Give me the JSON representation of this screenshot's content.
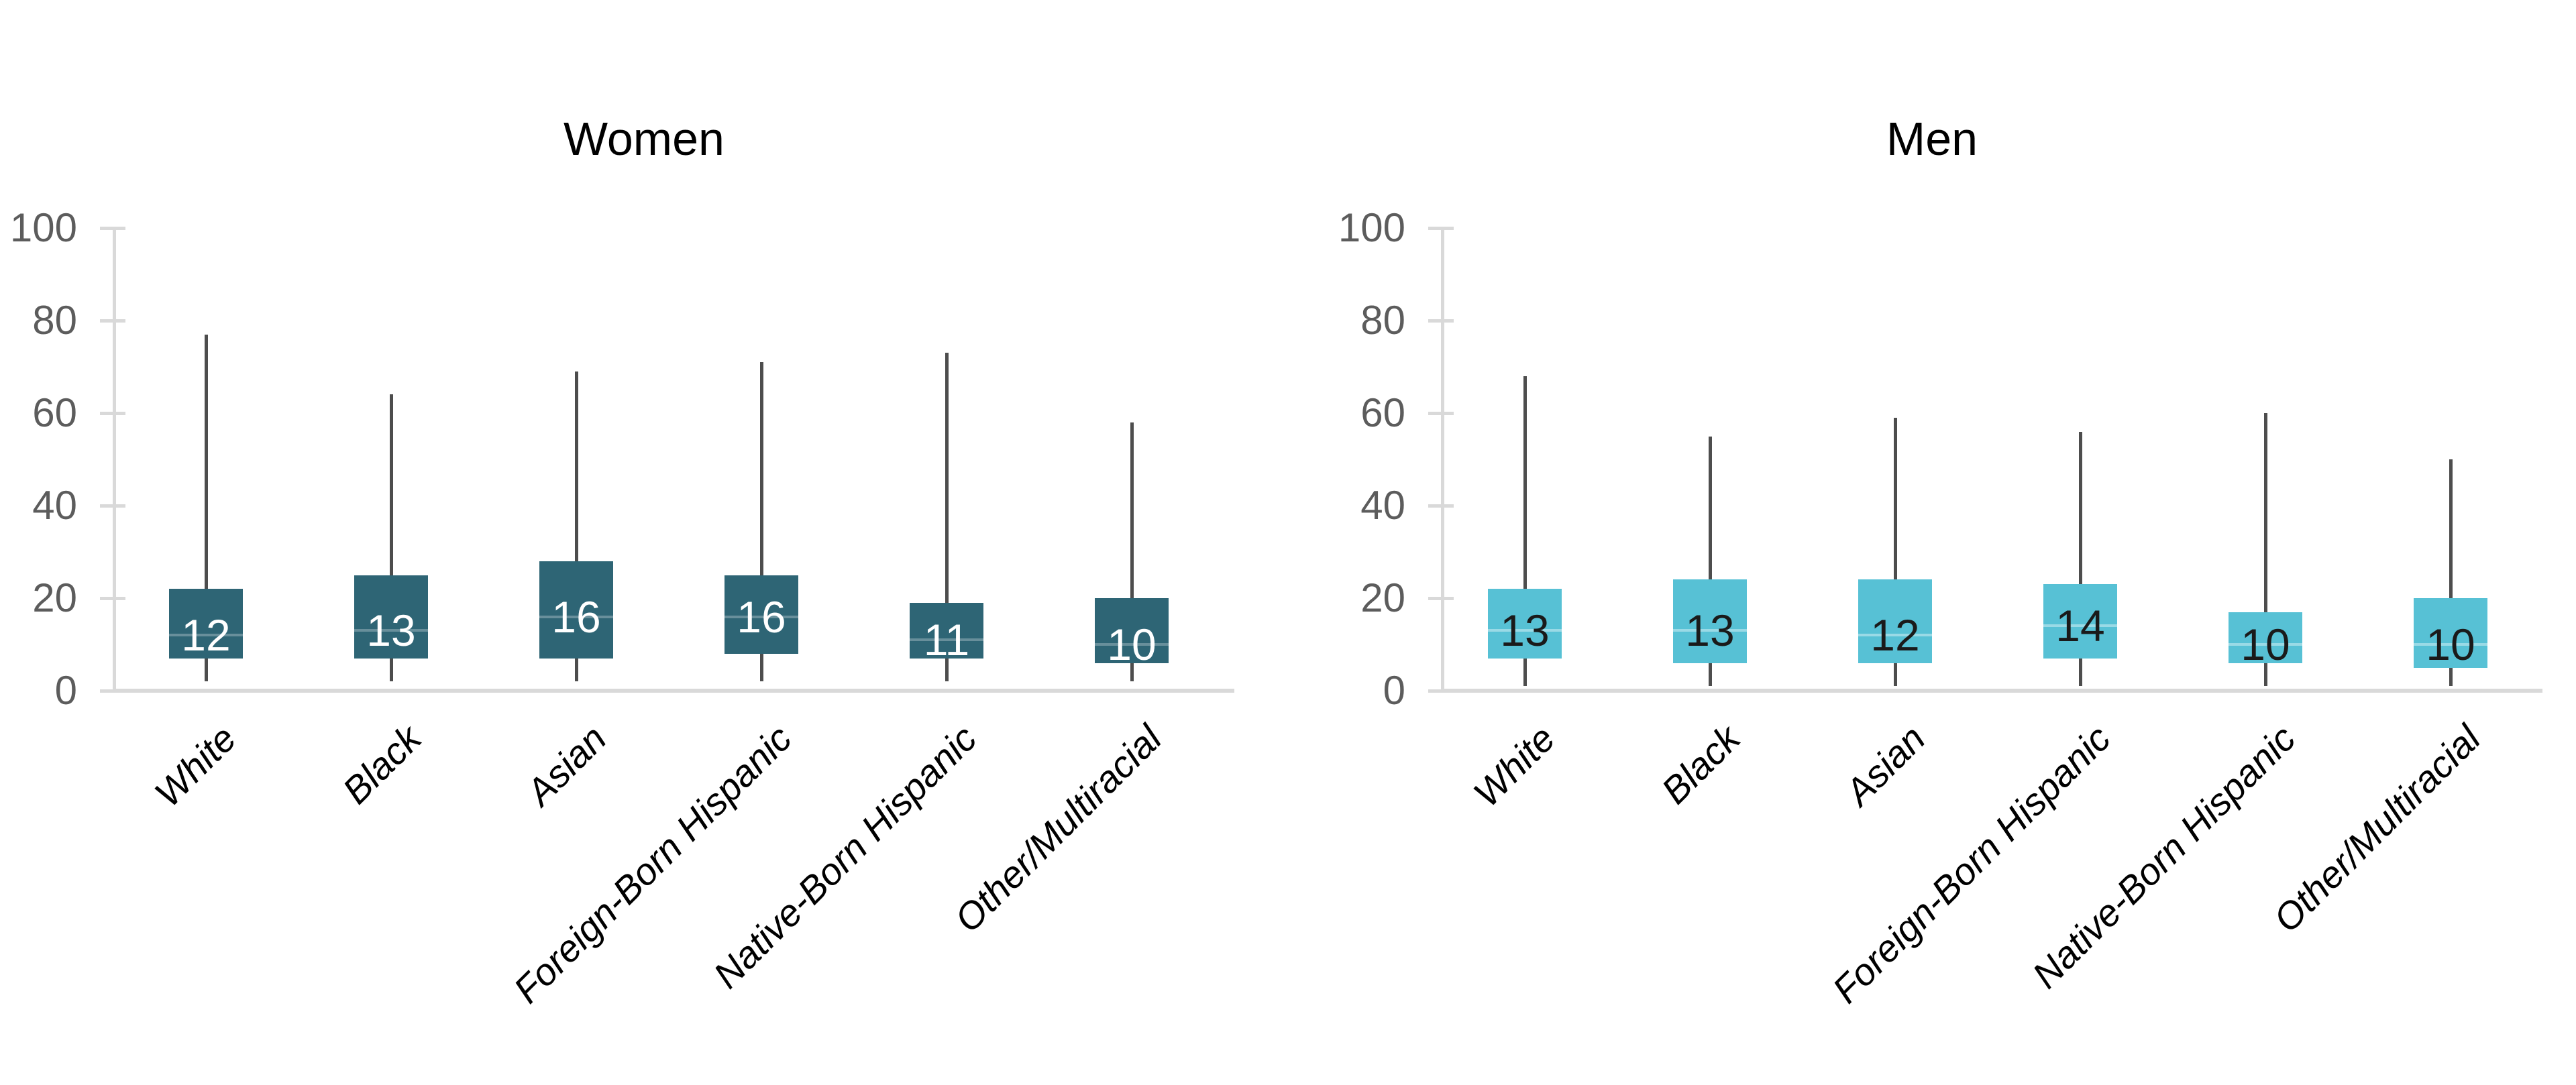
{
  "figure": {
    "background": "#ffffff"
  },
  "chart_data": [
    {
      "type": "box",
      "title": "Women",
      "categories": [
        "White",
        "Black",
        "Asian",
        "Foreign-Born Hispanic",
        "Native-Born Hispanic",
        "Other/Multiracial"
      ],
      "ylim": [
        0,
        100
      ],
      "yticks": [
        0,
        20,
        40,
        60,
        80,
        100
      ],
      "grid": false,
      "series": [
        {
          "category": "White",
          "median": 12,
          "q1": 7,
          "q3": 22,
          "whisker_low": 2,
          "whisker_high": 77
        },
        {
          "category": "Black",
          "median": 13,
          "q1": 7,
          "q3": 25,
          "whisker_low": 2,
          "whisker_high": 64
        },
        {
          "category": "Asian",
          "median": 16,
          "q1": 7,
          "q3": 28,
          "whisker_low": 2,
          "whisker_high": 69
        },
        {
          "category": "Foreign-Born Hispanic",
          "median": 16,
          "q1": 8,
          "q3": 25,
          "whisker_low": 2,
          "whisker_high": 71
        },
        {
          "category": "Native-Born Hispanic",
          "median": 11,
          "q1": 7,
          "q3": 19,
          "whisker_low": 2,
          "whisker_high": 73
        },
        {
          "category": "Other/Multiracial",
          "median": 10,
          "q1": 6,
          "q3": 20,
          "whisker_low": 2,
          "whisker_high": 58
        }
      ],
      "style": {
        "box_color": "#2e6575",
        "median_label_color": "#ffffff",
        "median_line_color": "rgba(255,255,255,0.28)"
      }
    },
    {
      "type": "box",
      "title": "Men",
      "categories": [
        "White",
        "Black",
        "Asian",
        "Foreign-Born Hispanic",
        "Native-Born Hispanic",
        "Other/Multiracial"
      ],
      "ylim": [
        0,
        100
      ],
      "yticks": [
        0,
        20,
        40,
        60,
        80,
        100
      ],
      "grid": false,
      "series": [
        {
          "category": "White",
          "median": 13,
          "q1": 7,
          "q3": 22,
          "whisker_low": 1,
          "whisker_high": 68
        },
        {
          "category": "Black",
          "median": 13,
          "q1": 6,
          "q3": 24,
          "whisker_low": 1,
          "whisker_high": 55
        },
        {
          "category": "Asian",
          "median": 12,
          "q1": 6,
          "q3": 24,
          "whisker_low": 1,
          "whisker_high": 59
        },
        {
          "category": "Foreign-Born Hispanic",
          "median": 14,
          "q1": 7,
          "q3": 23,
          "whisker_low": 1,
          "whisker_high": 56
        },
        {
          "category": "Native-Born Hispanic",
          "median": 10,
          "q1": 6,
          "q3": 17,
          "whisker_low": 1,
          "whisker_high": 60
        },
        {
          "category": "Other/Multiracial",
          "median": 10,
          "q1": 5,
          "q3": 20,
          "whisker_low": 1,
          "whisker_high": 50
        }
      ],
      "style": {
        "box_color": "#57c1d5",
        "median_label_color": "#1a1a1a",
        "median_line_color": "rgba(255,255,255,0.4)"
      }
    }
  ],
  "colors": {
    "whisker": "#4d4d4d",
    "axis": "#d9d9d9",
    "tick_label": "#5c5c5c",
    "title": "#000000",
    "category_label": "#000000"
  }
}
